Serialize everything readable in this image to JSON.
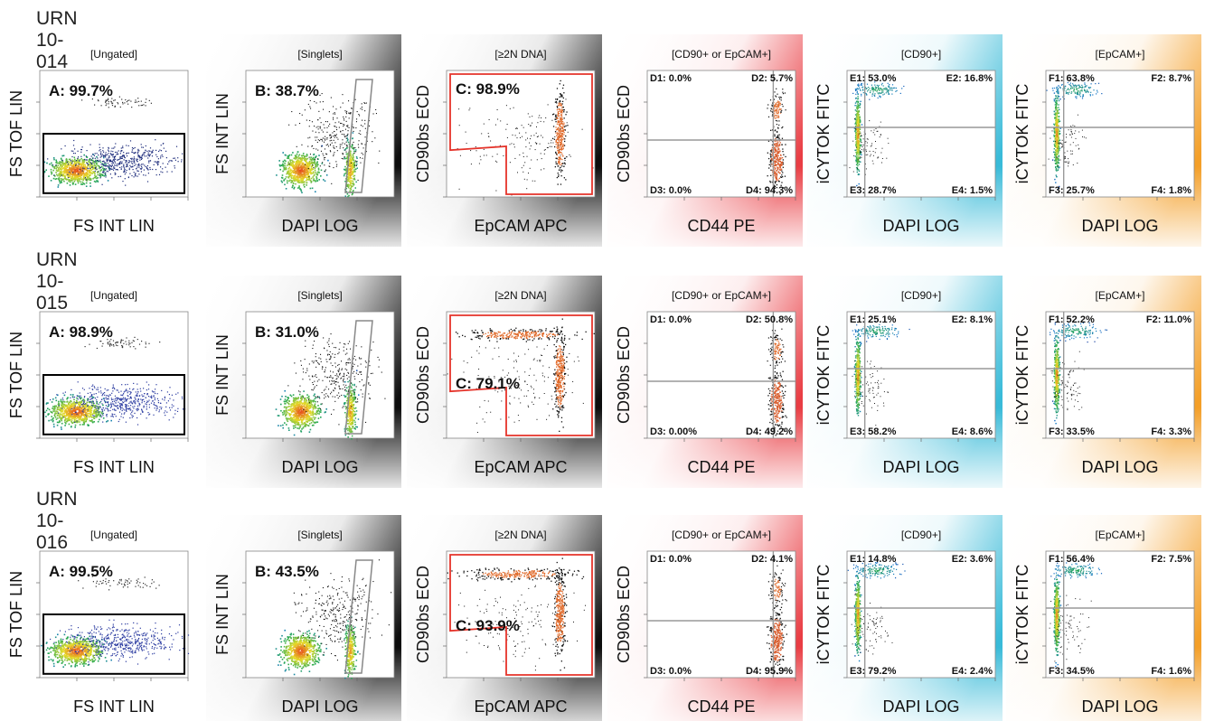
{
  "figure": {
    "rows": [
      {
        "label": "URN 10-014"
      },
      {
        "label": "URN 10-015"
      },
      {
        "label": "URN 10-016"
      }
    ],
    "columns": [
      {
        "title": "[Ungated]",
        "xlabel": "FS INT LIN",
        "ylabel": "FS TOF LIN",
        "scale": "linear",
        "gradient_color": "",
        "gate": "rect"
      },
      {
        "title": "[Singlets]",
        "xlabel": "DAPI LOG",
        "ylabel": "FS INT LIN",
        "scale": "logx",
        "gradient_color": "#000000",
        "gate": "slanted"
      },
      {
        "title": "[≥2N DNA]",
        "xlabel": "EpCAM APC",
        "ylabel": "CD90bs ECD",
        "scale": "log",
        "gradient_color": "#000000",
        "gate": "poly"
      },
      {
        "title": "[CD90+ or EpCAM+]",
        "xlabel": "CD44 PE",
        "ylabel": "CD90bs ECD",
        "scale": "log",
        "gradient_color": "#e8333a",
        "gate": "quad"
      },
      {
        "title": "[CD90+]",
        "xlabel": "DAPI LOG",
        "ylabel": "iCYTOK FITC",
        "scale": "linear",
        "gradient_color": "#2fb7d6",
        "gate": "quad"
      },
      {
        "title": "[EpCAM+]",
        "xlabel": "DAPI LOG",
        "ylabel": "iCYTOK FITC",
        "scale": "linear",
        "gradient_color": "#f39a1d",
        "gate": "quad"
      }
    ]
  },
  "chart_data": [
    {
      "type": "scatter",
      "sample": "URN 10-014",
      "panel": "[Ungated]",
      "gate_labels": [
        "A: 99.7%"
      ],
      "gate_values": [
        99.7
      ]
    },
    {
      "type": "scatter",
      "sample": "URN 10-014",
      "panel": "[Singlets]",
      "gate_labels": [
        "B: 38.7%"
      ],
      "gate_values": [
        38.7
      ]
    },
    {
      "type": "scatter",
      "sample": "URN 10-014",
      "panel": "[≥2N DNA]",
      "gate_labels": [
        "C: 98.9%"
      ],
      "gate_values": [
        98.9
      ]
    },
    {
      "type": "scatter",
      "sample": "URN 10-014",
      "panel": "[CD90+ or EpCAM+]",
      "gate_labels": [
        "D1: 0.0%",
        "D2: 5.7%",
        "D3: 0.0%",
        "D4: 94.3%"
      ],
      "gate_values": [
        0.0,
        5.7,
        0.0,
        94.3
      ]
    },
    {
      "type": "scatter",
      "sample": "URN 10-014",
      "panel": "[CD90+]",
      "gate_labels": [
        "E1: 53.0%",
        "E2: 16.8%",
        "E3: 28.7%",
        "E4: 1.5%"
      ],
      "gate_values": [
        53.0,
        16.8,
        28.7,
        1.5
      ]
    },
    {
      "type": "scatter",
      "sample": "URN 10-014",
      "panel": "[EpCAM+]",
      "gate_labels": [
        "F1: 63.8%",
        "F2: 8.7%",
        "F3: 25.7%",
        "F4: 1.8%"
      ],
      "gate_values": [
        63.8,
        8.7,
        25.7,
        1.8
      ]
    },
    {
      "type": "scatter",
      "sample": "URN 10-015",
      "panel": "[Ungated]",
      "gate_labels": [
        "A: 98.9%"
      ],
      "gate_values": [
        98.9
      ]
    },
    {
      "type": "scatter",
      "sample": "URN 10-015",
      "panel": "[Singlets]",
      "gate_labels": [
        "B: 31.0%"
      ],
      "gate_values": [
        31.0
      ]
    },
    {
      "type": "scatter",
      "sample": "URN 10-015",
      "panel": "[≥2N DNA]",
      "gate_labels": [
        "C: 79.1%"
      ],
      "gate_values": [
        79.1
      ]
    },
    {
      "type": "scatter",
      "sample": "URN 10-015",
      "panel": "[CD90+ or EpCAM+]",
      "gate_labels": [
        "D1: 0.0%",
        "D2: 50.8%",
        "D3: 0.00%",
        "D4: 49.2%"
      ],
      "gate_values": [
        0.0,
        50.8,
        0.0,
        49.2
      ]
    },
    {
      "type": "scatter",
      "sample": "URN 10-015",
      "panel": "[CD90+]",
      "gate_labels": [
        "E1: 25.1%",
        "E2: 8.1%",
        "E3: 58.2%",
        "E4: 8.6%"
      ],
      "gate_values": [
        25.1,
        8.1,
        58.2,
        8.6
      ]
    },
    {
      "type": "scatter",
      "sample": "URN 10-015",
      "panel": "[EpCAM+]",
      "gate_labels": [
        "F1: 52.2%",
        "F2: 11.0%",
        "F3: 33.5%",
        "F4: 3.3%"
      ],
      "gate_values": [
        52.2,
        11.0,
        33.5,
        3.3
      ]
    },
    {
      "type": "scatter",
      "sample": "URN 10-016",
      "panel": "[Ungated]",
      "gate_labels": [
        "A: 99.5%"
      ],
      "gate_values": [
        99.5
      ]
    },
    {
      "type": "scatter",
      "sample": "URN 10-016",
      "panel": "[Singlets]",
      "gate_labels": [
        "B: 43.5%"
      ],
      "gate_values": [
        43.5
      ]
    },
    {
      "type": "scatter",
      "sample": "URN 10-016",
      "panel": "[≥2N DNA]",
      "gate_labels": [
        "C: 93.9%"
      ],
      "gate_values": [
        93.9
      ]
    },
    {
      "type": "scatter",
      "sample": "URN 10-016",
      "panel": "[CD90+ or EpCAM+]",
      "gate_labels": [
        "D1: 0.0%",
        "D2: 4.1%",
        "D3: 0.0%",
        "D4: 95.9%"
      ],
      "gate_values": [
        0.0,
        4.1,
        0.0,
        95.9
      ]
    },
    {
      "type": "scatter",
      "sample": "URN 10-016",
      "panel": "[CD90+]",
      "gate_labels": [
        "E1: 14.8%",
        "E2: 3.6%",
        "E3: 79.2%",
        "E4: 2.4%"
      ],
      "gate_values": [
        14.8,
        3.6,
        79.2,
        2.4
      ]
    },
    {
      "type": "scatter",
      "sample": "URN 10-016",
      "panel": "[EpCAM+]",
      "gate_labels": [
        "F1: 56.4%",
        "F2: 7.5%",
        "F3: 34.5%",
        "F4: 1.6%"
      ],
      "gate_values": [
        56.4,
        7.5,
        34.5,
        1.6
      ]
    }
  ]
}
